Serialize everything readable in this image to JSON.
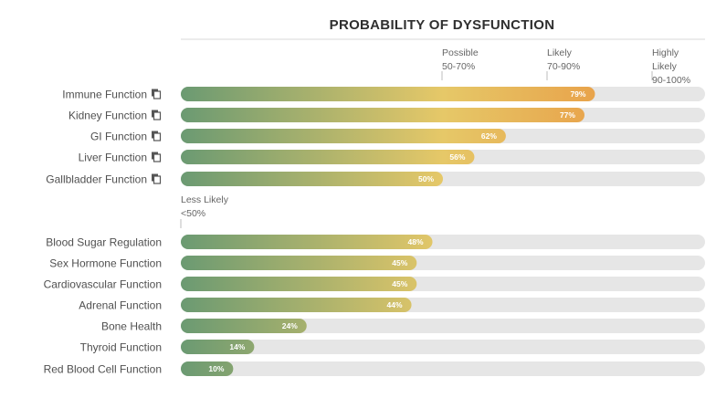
{
  "chart_data": {
    "type": "bar",
    "orientation": "horizontal",
    "title": "PROBABILITY OF DYSFUNCTION",
    "xlim": [
      0,
      100
    ],
    "unit": "%",
    "colors": {
      "low": "#6b9a72",
      "mid": "#e6c868",
      "high": "#e8a24a",
      "track": "#e6e6e6"
    },
    "thresholds": [
      {
        "lines": [
          "Possible",
          "50-70%"
        ],
        "value": 50
      },
      {
        "lines": [
          "Likely",
          "70-90%"
        ],
        "value": 70
      },
      {
        "lines": [
          "Highly",
          "Likely",
          "90-100%"
        ],
        "value": 90
      }
    ],
    "lower_threshold": {
      "lines": [
        "Less Likely",
        "<50%"
      ]
    },
    "groups": [
      {
        "has_icon": true,
        "categories": [
          "Immune Function",
          "Kidney Function",
          "GI Function",
          "Liver Function",
          "Gallbladder Function"
        ],
        "values": [
          79,
          77,
          62,
          56,
          50
        ],
        "labels": [
          "79%",
          "77%",
          "62%",
          "56%",
          "50%"
        ]
      },
      {
        "has_icon": false,
        "categories": [
          "Blood Sugar Regulation",
          "Sex Hormone Function",
          "Cardiovascular Function",
          "Adrenal Function",
          "Bone Health",
          "Thyroid Function",
          "Red Blood Cell Function"
        ],
        "values": [
          48,
          45,
          45,
          44,
          24,
          14,
          10
        ],
        "labels": [
          "48%",
          "45%",
          "45%",
          "44%",
          "24%",
          "14%",
          "10%"
        ]
      }
    ]
  }
}
